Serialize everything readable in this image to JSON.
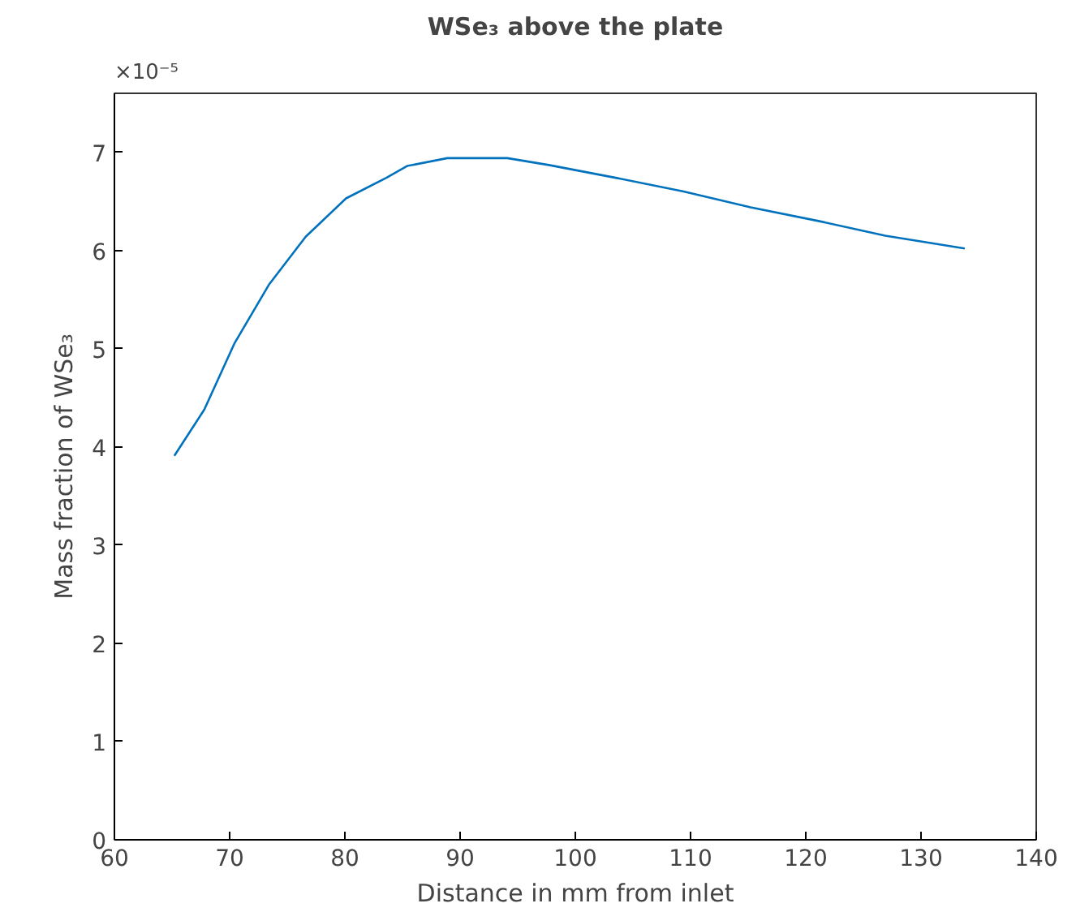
{
  "chart_data": {
    "type": "line",
    "title": "WSe₃ above the plate",
    "xlabel": "Distance in mm from inlet",
    "ylabel": "Mass fraction of WSe₃",
    "annotations": [
      "×10⁻⁵"
    ],
    "x": [
      65.2,
      67.8,
      70.4,
      73.4,
      76.6,
      80.1,
      83.6,
      85.4,
      88.9,
      94.1,
      97.7,
      103.5,
      109.4,
      115.2,
      121.1,
      126.9,
      133.8
    ],
    "series": [
      {
        "color": "#0072bd",
        "values": [
          3.91,
          4.38,
          5.05,
          5.65,
          6.14,
          6.53,
          6.74,
          6.86,
          6.94,
          6.94,
          6.87,
          6.74,
          6.6,
          6.44,
          6.3,
          6.15,
          6.02
        ]
      }
    ],
    "xlim": [
      60,
      140
    ],
    "ylim": [
      0,
      7.6
    ],
    "xticks": [
      60,
      70,
      80,
      90,
      100,
      110,
      120,
      130,
      140
    ],
    "yticks": [
      0,
      1,
      2,
      3,
      4,
      5,
      6,
      7
    ],
    "grid": false,
    "marker": "none",
    "line_style": "solid"
  }
}
